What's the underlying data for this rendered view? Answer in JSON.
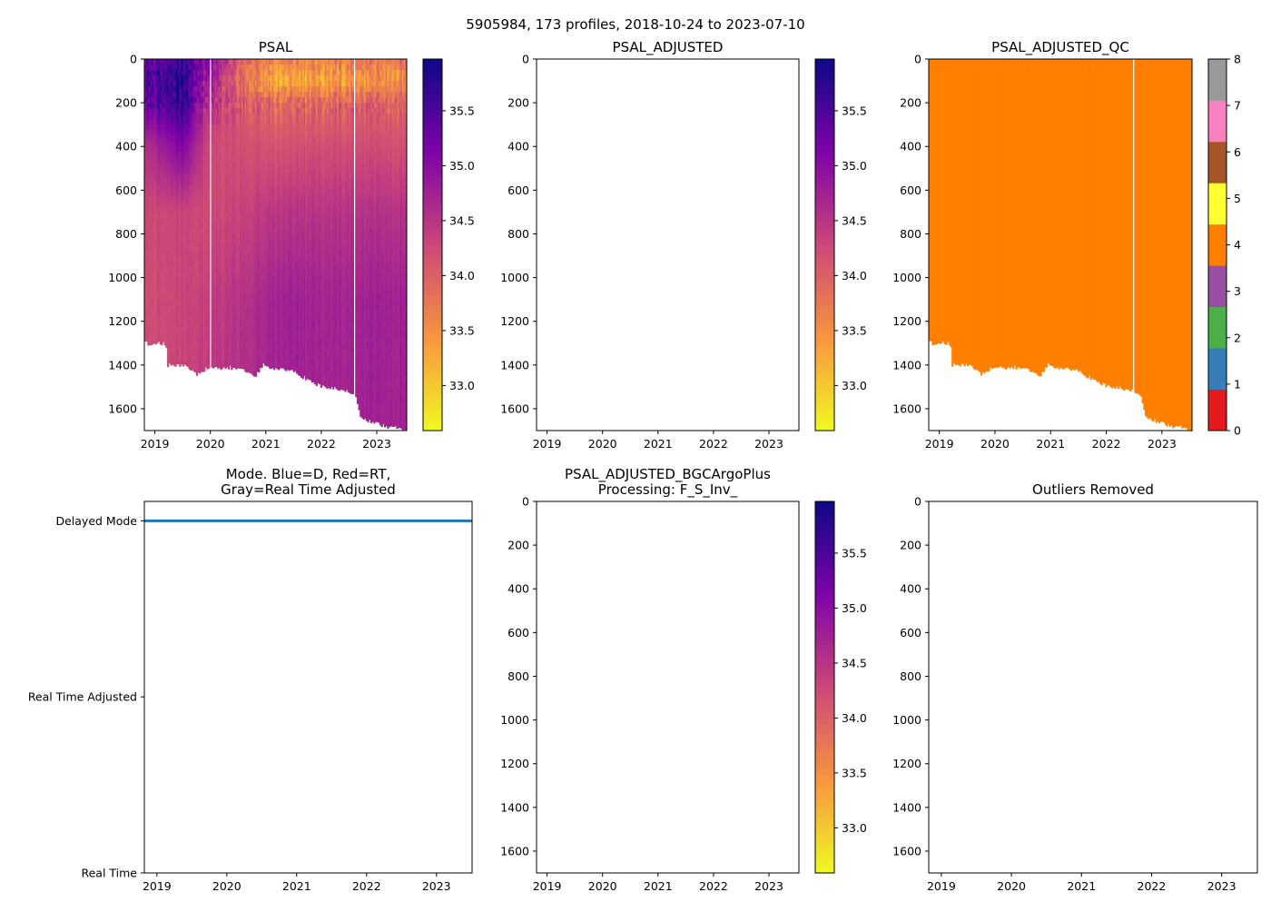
{
  "suptitle": "5905984, 173 profiles, 2018-10-24 to 2023-07-10",
  "colors": {
    "qc": [
      "#e41a1c",
      "#377eb8",
      "#4daf4a",
      "#984ea3",
      "#ff7f00",
      "#ffff33",
      "#a65628",
      "#f781bf",
      "#999999"
    ],
    "mode_delayed": "#1f77b4",
    "plasma": [
      "#0d0887",
      "#7e03a8",
      "#cc4778",
      "#f89540",
      "#f0f921"
    ]
  },
  "chart_data": [
    {
      "type": "heatmap",
      "title": "PSAL",
      "x_ticks": [
        "2019",
        "2020",
        "2021",
        "2022",
        "2023"
      ],
      "xlim": [
        2018.81,
        2023.54
      ],
      "y_ticks": [
        "0",
        "200",
        "400",
        "600",
        "800",
        "1000",
        "1200",
        "1400",
        "1600"
      ],
      "ylim": [
        1700,
        0
      ],
      "colorbar": {
        "ticks": [
          "33.0",
          "33.5",
          "34.0",
          "34.5",
          "35.0",
          "35.5"
        ],
        "range": [
          32.59,
          35.97
        ],
        "cmap": "plasma_r"
      },
      "n_profiles": 173,
      "missing_profiles_at": [
        2020.0,
        2022.6
      ],
      "depth_levels": [
        0,
        100,
        200,
        400,
        700,
        1100,
        1700
      ],
      "salinity_by_epoch": [
        {
          "t": 2018.81,
          "values": [
            35.3,
            35.4,
            35.2,
            34.5,
            34.25,
            34.2,
            34.2
          ]
        },
        {
          "t": 2019.5,
          "values": [
            35.6,
            35.75,
            35.7,
            35.1,
            34.3,
            34.3,
            34.3
          ]
        },
        {
          "t": 2020.0,
          "values": [
            34.9,
            34.6,
            34.4,
            34.2,
            34.2,
            34.35,
            34.45
          ]
        },
        {
          "t": 2020.6,
          "values": [
            34.0,
            33.8,
            34.1,
            34.2,
            34.35,
            34.55,
            34.6
          ]
        },
        {
          "t": 2021.2,
          "values": [
            33.6,
            33.2,
            33.9,
            34.15,
            34.5,
            34.75,
            34.75
          ]
        },
        {
          "t": 2022.2,
          "values": [
            33.6,
            33.3,
            33.9,
            34.2,
            34.5,
            34.7,
            34.7
          ]
        },
        {
          "t": 2023.54,
          "values": [
            33.8,
            33.5,
            34.0,
            34.2,
            34.55,
            34.75,
            34.75
          ]
        }
      ],
      "max_depth_profile": [
        [
          2018.81,
          1300
        ],
        [
          2019.2,
          1300
        ],
        [
          2019.23,
          1400
        ],
        [
          2019.55,
          1400
        ],
        [
          2019.75,
          1440
        ],
        [
          2019.95,
          1415
        ],
        [
          2020.5,
          1410
        ],
        [
          2020.8,
          1455
        ],
        [
          2020.95,
          1400
        ],
        [
          2021.5,
          1430
        ],
        [
          2021.8,
          1470
        ],
        [
          2022.0,
          1495
        ],
        [
          2022.5,
          1515
        ],
        [
          2022.62,
          1540
        ],
        [
          2022.72,
          1640
        ],
        [
          2022.9,
          1660
        ],
        [
          2023.2,
          1680
        ],
        [
          2023.54,
          1700
        ]
      ]
    },
    {
      "type": "heatmap",
      "title": "PSAL_ADJUSTED",
      "x_ticks": [
        "2019",
        "2020",
        "2021",
        "2022",
        "2023"
      ],
      "xlim": [
        2018.81,
        2023.54
      ],
      "y_ticks": [
        "0",
        "200",
        "400",
        "600",
        "800",
        "1000",
        "1200",
        "1400",
        "1600"
      ],
      "ylim": [
        1700,
        0
      ],
      "colorbar": {
        "ticks": [
          "33.0",
          "33.5",
          "34.0",
          "34.5",
          "35.0",
          "35.5"
        ],
        "range": [
          32.59,
          35.97
        ],
        "cmap": "plasma_r"
      },
      "values": []
    },
    {
      "type": "heatmap",
      "title": "PSAL_ADJUSTED_QC",
      "x_ticks": [
        "2019",
        "2020",
        "2021",
        "2022",
        "2023"
      ],
      "xlim": [
        2018.81,
        2023.54
      ],
      "y_ticks": [
        "0",
        "200",
        "400",
        "600",
        "800",
        "1000",
        "1200",
        "1400",
        "1600"
      ],
      "ylim": [
        1700,
        0
      ],
      "colorbar": {
        "ticks": [
          "0",
          "1",
          "2",
          "3",
          "4",
          "5",
          "6",
          "7",
          "8"
        ],
        "range": [
          0,
          8
        ],
        "cmap": "Set1"
      },
      "qc_value": 4,
      "missing_profiles_at": [
        2022.48
      ]
    },
    {
      "type": "line",
      "title": "Mode. Blue=D, Red=RT,\nGray=Real Time Adjusted",
      "title_lines": [
        "Mode. Blue=D, Red=RT,",
        "Gray=Real Time Adjusted"
      ],
      "x_ticks": [
        "2019",
        "2020",
        "2021",
        "2022",
        "2023"
      ],
      "xlim": [
        2018.82,
        2023.51
      ],
      "y_ticks": [
        "Real Time",
        "Real Time Adjusted",
        "Delayed Mode"
      ],
      "ylim": [
        0,
        2.11
      ],
      "series": [
        {
          "name": "Delayed Mode",
          "value": 2,
          "x_range": [
            2018.82,
            2023.51
          ]
        }
      ]
    },
    {
      "type": "heatmap",
      "title": "PSAL_ADJUSTED_BGCArgoPlus\nProcessing: F_S_Inv_",
      "title_lines": [
        "PSAL_ADJUSTED_BGCArgoPlus",
        "Processing: F_S_Inv_"
      ],
      "x_ticks": [
        "2019",
        "2020",
        "2021",
        "2022",
        "2023"
      ],
      "xlim": [
        2018.81,
        2023.54
      ],
      "y_ticks": [
        "0",
        "200",
        "400",
        "600",
        "800",
        "1000",
        "1200",
        "1400",
        "1600"
      ],
      "ylim": [
        1700,
        0
      ],
      "colorbar": {
        "ticks": [
          "33.0",
          "33.5",
          "34.0",
          "34.5",
          "35.0",
          "35.5"
        ],
        "range": [
          32.59,
          35.97
        ],
        "cmap": "plasma_r"
      },
      "values": []
    },
    {
      "type": "scatter",
      "title": "Outliers Removed",
      "x_ticks": [
        "2019",
        "2020",
        "2021",
        "2022",
        "2023"
      ],
      "xlim": [
        2018.82,
        2023.51
      ],
      "y_ticks": [
        "0",
        "200",
        "400",
        "600",
        "800",
        "1000",
        "1200",
        "1400",
        "1600"
      ],
      "ylim": [
        1700,
        0
      ],
      "values": []
    }
  ]
}
